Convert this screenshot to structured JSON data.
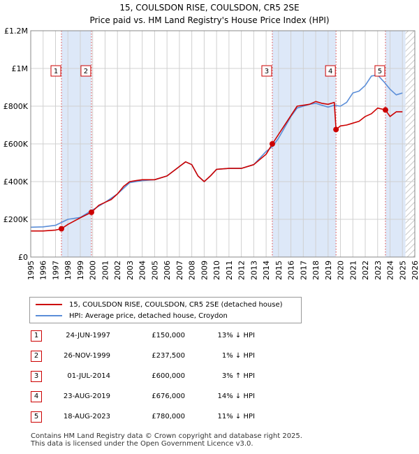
{
  "chart_data": {
    "type": "line",
    "title": "15, COULSDON RISE, COULSDON, CR5 2SE",
    "subtitle": "Price paid vs. HM Land Registry's House Price Index (HPI)",
    "xlim": [
      1995,
      2026
    ],
    "ylim": [
      0,
      1200000
    ],
    "x_ticks": [
      1995,
      1996,
      1997,
      1998,
      1999,
      2000,
      2001,
      2002,
      2003,
      2004,
      2005,
      2006,
      2007,
      2008,
      2009,
      2010,
      2011,
      2012,
      2013,
      2014,
      2015,
      2016,
      2017,
      2018,
      2019,
      2020,
      2021,
      2022,
      2023,
      2024,
      2025,
      2026
    ],
    "y_ticks": [
      {
        "value": 0,
        "label": "£0"
      },
      {
        "value": 200000,
        "label": "£200K"
      },
      {
        "value": 400000,
        "label": "£400K"
      },
      {
        "value": 600000,
        "label": "£600K"
      },
      {
        "value": 800000,
        "label": "£800K"
      },
      {
        "value": 1000000,
        "label": "£1M"
      },
      {
        "value": 1200000,
        "label": "£1.2M"
      }
    ],
    "grid": true,
    "shaded_spans": [
      [
        1997.48,
        1999.9
      ],
      [
        2014.5,
        2019.64
      ],
      [
        2023.63,
        2025.25
      ]
    ],
    "hatched_span": [
      2025.25,
      2026
    ],
    "series": [
      {
        "name": "15, COULSDON RISE, COULSDON, CR5 2SE (detached house)",
        "color": "#cc0000",
        "x": [
          1995.0,
          1996.0,
          1997.0,
          1997.48,
          1998.0,
          1999.0,
          1999.9,
          2000.5,
          2001.0,
          2001.5,
          2002.0,
          2002.5,
          2003.0,
          2003.5,
          2004.0,
          2005.0,
          2006.0,
          2007.0,
          2007.5,
          2008.0,
          2008.5,
          2009.0,
          2009.5,
          2010.0,
          2011.0,
          2012.0,
          2013.0,
          2014.0,
          2014.5,
          2015.0,
          2016.0,
          2016.5,
          2017.0,
          2017.5,
          2018.0,
          2018.5,
          2019.0,
          2019.5,
          2019.64,
          2020.0,
          2020.5,
          2021.0,
          2021.5,
          2022.0,
          2022.5,
          2023.0,
          2023.63,
          2024.0,
          2024.5,
          2025.0
        ],
        "values": [
          138000,
          138000,
          143000,
          150000,
          173000,
          208000,
          237500,
          275000,
          290000,
          305000,
          335000,
          375000,
          400000,
          405000,
          410000,
          410000,
          430000,
          480000,
          505000,
          490000,
          430000,
          400000,
          430000,
          465000,
          470000,
          470000,
          490000,
          545000,
          600000,
          650000,
          750000,
          800000,
          805000,
          810000,
          825000,
          815000,
          810000,
          820000,
          676000,
          695000,
          700000,
          710000,
          720000,
          745000,
          760000,
          790000,
          780000,
          745000,
          770000,
          770000
        ]
      },
      {
        "name": "HPI: Average price, detached house, Croydon",
        "color": "#5b8ed8",
        "x": [
          1995.0,
          1996.0,
          1997.0,
          1998.0,
          1999.0,
          2000.0,
          2001.0,
          2002.0,
          2003.0,
          2004.0,
          2005.0,
          2006.0,
          2007.0,
          2007.5,
          2008.0,
          2008.5,
          2009.0,
          2009.5,
          2010.0,
          2011.0,
          2012.0,
          2013.0,
          2014.0,
          2014.5,
          2015.0,
          2016.0,
          2016.5,
          2017.0,
          2017.5,
          2018.0,
          2018.5,
          2019.0,
          2019.5,
          2020.0,
          2020.5,
          2021.0,
          2021.5,
          2022.0,
          2022.5,
          2023.0,
          2023.5,
          2024.0,
          2024.5,
          2025.0
        ],
        "values": [
          158000,
          160000,
          168000,
          200000,
          210000,
          250000,
          290000,
          335000,
          395000,
          405000,
          410000,
          430000,
          480000,
          505000,
          490000,
          430000,
          400000,
          430000,
          465000,
          470000,
          470000,
          490000,
          560000,
          585000,
          630000,
          745000,
          790000,
          800000,
          810000,
          815000,
          805000,
          795000,
          805000,
          800000,
          820000,
          870000,
          880000,
          910000,
          960000,
          965000,
          930000,
          890000,
          860000,
          870000
        ]
      }
    ],
    "markers": [
      {
        "label": "1",
        "x": 1997.48,
        "y": 150000
      },
      {
        "label": "2",
        "x": 1999.9,
        "y": 237500
      },
      {
        "label": "3",
        "x": 2014.5,
        "y": 600000
      },
      {
        "label": "4",
        "x": 2019.64,
        "y": 676000
      },
      {
        "label": "5",
        "x": 2023.63,
        "y": 780000
      }
    ]
  },
  "legend": {
    "property_label": "15, COULSDON RISE, COULSDON, CR5 2SE (detached house)",
    "hpi_label": "HPI: Average price, detached house, Croydon",
    "property_color": "#cc0000",
    "hpi_color": "#5b8ed8"
  },
  "sales": [
    {
      "num": "1",
      "date": "24-JUN-1997",
      "price": "£150,000",
      "hpi": "13% ↓ HPI"
    },
    {
      "num": "2",
      "date": "26-NOV-1999",
      "price": "£237,500",
      "hpi": "1% ↓ HPI"
    },
    {
      "num": "3",
      "date": "01-JUL-2014",
      "price": "£600,000",
      "hpi": "3% ↑ HPI"
    },
    {
      "num": "4",
      "date": "23-AUG-2019",
      "price": "£676,000",
      "hpi": "14% ↓ HPI"
    },
    {
      "num": "5",
      "date": "18-AUG-2023",
      "price": "£780,000",
      "hpi": "11% ↓ HPI"
    }
  ],
  "footer": {
    "line1": "Contains HM Land Registry data © Crown copyright and database right 2025.",
    "line2": "This data is licensed under the Open Government Licence v3.0."
  }
}
